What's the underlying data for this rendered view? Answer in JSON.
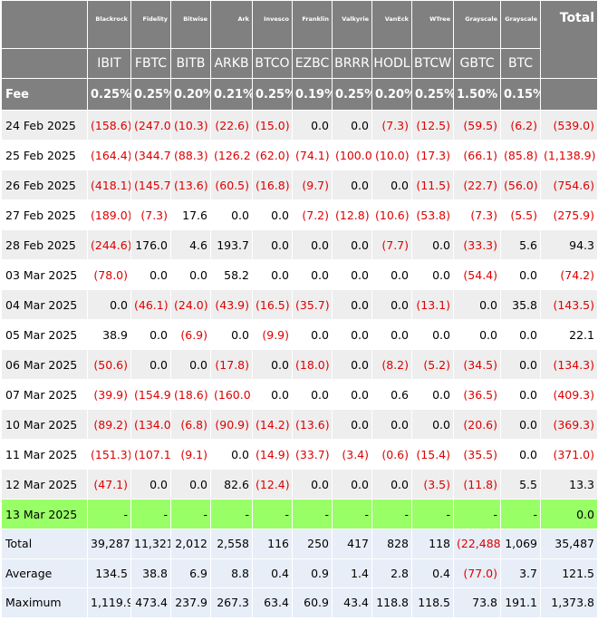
{
  "table": {
    "fee_label": "Fee",
    "total_header": "Total",
    "columns": [
      {
        "sponsor": "Blackrock",
        "ticker": "IBIT",
        "fee": "0.25%"
      },
      {
        "sponsor": "Fidelity",
        "ticker": "FBTC",
        "fee": "0.25%"
      },
      {
        "sponsor": "Bitwise",
        "ticker": "BITB",
        "fee": "0.20%"
      },
      {
        "sponsor": "Ark",
        "ticker": "ARKB",
        "fee": "0.21%"
      },
      {
        "sponsor": "Invesco",
        "ticker": "BTCO",
        "fee": "0.25%"
      },
      {
        "sponsor": "Franklin",
        "ticker": "EZBC",
        "fee": "0.19%"
      },
      {
        "sponsor": "Valkyrie",
        "ticker": "BRRR",
        "fee": "0.25%"
      },
      {
        "sponsor": "VanEck",
        "ticker": "HODL",
        "fee": "0.20%"
      },
      {
        "sponsor": "WTree",
        "ticker": "BTCW",
        "fee": "0.25%"
      },
      {
        "sponsor": "Grayscale",
        "ticker": "GBTC",
        "fee": "1.50%"
      },
      {
        "sponsor": "Grayscale",
        "ticker": "BTC",
        "fee": "0.15%"
      }
    ],
    "rows": [
      {
        "label": "24 Feb 2025",
        "cells": [
          "(158.6)",
          "(247.0)",
          "(10.3)",
          "(22.6)",
          "(15.0)",
          "0.0",
          "0.0",
          "(7.3)",
          "(12.5)",
          "(59.5)",
          "(6.2)",
          "(539.0)"
        ]
      },
      {
        "label": "25 Feb 2025",
        "cells": [
          "(164.4)",
          "(344.7)",
          "(88.3)",
          "(126.2)",
          "(62.0)",
          "(74.1)",
          "(100.0)",
          "(10.0)",
          "(17.3)",
          "(66.1)",
          "(85.8)",
          "(1,138.9)"
        ]
      },
      {
        "label": "26 Feb 2025",
        "cells": [
          "(418.1)",
          "(145.7)",
          "(13.6)",
          "(60.5)",
          "(16.8)",
          "(9.7)",
          "0.0",
          "0.0",
          "(11.5)",
          "(22.7)",
          "(56.0)",
          "(754.6)"
        ]
      },
      {
        "label": "27 Feb 2025",
        "cells": [
          "(189.0)",
          "(7.3)",
          "17.6",
          "0.0",
          "0.0",
          "(7.2)",
          "(12.8)",
          "(10.6)",
          "(53.8)",
          "(7.3)",
          "(5.5)",
          "(275.9)"
        ]
      },
      {
        "label": "28 Feb 2025",
        "cells": [
          "(244.6)",
          "176.0",
          "4.6",
          "193.7",
          "0.0",
          "0.0",
          "0.0",
          "(7.7)",
          "0.0",
          "(33.3)",
          "5.6",
          "94.3"
        ]
      },
      {
        "label": "03 Mar 2025",
        "cells": [
          "(78.0)",
          "0.0",
          "0.0",
          "58.2",
          "0.0",
          "0.0",
          "0.0",
          "0.0",
          "0.0",
          "(54.4)",
          "0.0",
          "(74.2)"
        ]
      },
      {
        "label": "04 Mar 2025",
        "cells": [
          "0.0",
          "(46.1)",
          "(24.0)",
          "(43.9)",
          "(16.5)",
          "(35.7)",
          "0.0",
          "0.0",
          "(13.1)",
          "0.0",
          "35.8",
          "(143.5)"
        ]
      },
      {
        "label": "05 Mar 2025",
        "cells": [
          "38.9",
          "0.0",
          "(6.9)",
          "0.0",
          "(9.9)",
          "0.0",
          "0.0",
          "0.0",
          "0.0",
          "0.0",
          "0.0",
          "22.1"
        ]
      },
      {
        "label": "06 Mar 2025",
        "cells": [
          "(50.6)",
          "0.0",
          "0.0",
          "(17.8)",
          "0.0",
          "(18.0)",
          "0.0",
          "(8.2)",
          "(5.2)",
          "(34.5)",
          "0.0",
          "(134.3)"
        ]
      },
      {
        "label": "07 Mar 2025",
        "cells": [
          "(39.9)",
          "(154.9)",
          "(18.6)",
          "(160.0)",
          "0.0",
          "0.0",
          "0.0",
          "0.6",
          "0.0",
          "(36.5)",
          "0.0",
          "(409.3)"
        ]
      },
      {
        "label": "10 Mar 2025",
        "cells": [
          "(89.2)",
          "(134.0)",
          "(6.8)",
          "(90.9)",
          "(14.2)",
          "(13.6)",
          "0.0",
          "0.0",
          "0.0",
          "(20.6)",
          "0.0",
          "(369.3)"
        ]
      },
      {
        "label": "11 Mar 2025",
        "cells": [
          "(151.3)",
          "(107.1)",
          "(9.1)",
          "0.0",
          "(14.9)",
          "(33.7)",
          "(3.4)",
          "(0.6)",
          "(15.4)",
          "(35.5)",
          "0.0",
          "(371.0)"
        ]
      },
      {
        "label": "12 Mar 2025",
        "cells": [
          "(47.1)",
          "0.0",
          "0.0",
          "82.6",
          "(12.4)",
          "0.0",
          "0.0",
          "0.0",
          "(3.5)",
          "(11.8)",
          "5.5",
          "13.3"
        ]
      },
      {
        "label": "13 Mar 2025",
        "cells": [
          "-",
          "-",
          "-",
          "-",
          "-",
          "-",
          "-",
          "-",
          "-",
          "-",
          "-",
          "0.0"
        ]
      }
    ],
    "summary": [
      {
        "label": "Total",
        "cells": [
          "39,287",
          "11,321",
          "2,012",
          "2,558",
          "116",
          "250",
          "417",
          "828",
          "118",
          "(22,488)",
          "1,069",
          "35,487"
        ]
      },
      {
        "label": "Average",
        "cells": [
          "134.5",
          "38.8",
          "6.9",
          "8.8",
          "0.4",
          "0.9",
          "1.4",
          "2.8",
          "0.4",
          "(77.0)",
          "3.7",
          "121.5"
        ]
      },
      {
        "label": "Maximum",
        "cells": [
          "1,119.9",
          "473.4",
          "237.9",
          "267.3",
          "63.4",
          "60.9",
          "43.4",
          "118.8",
          "118.5",
          "73.8",
          "191.1",
          "1,373.8"
        ]
      }
    ]
  }
}
